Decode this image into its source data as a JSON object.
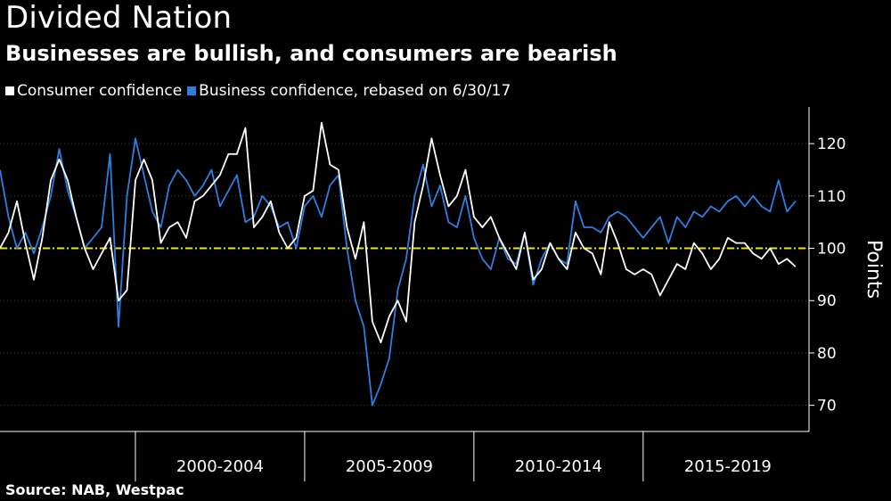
{
  "header": {
    "title": "Divided Nation",
    "subtitle": "Businesses are bullish, and consumers are bearish"
  },
  "legend": {
    "consumer_label": "Consumer confidence",
    "business_label": "Business confidence, rebased on 6/30/17"
  },
  "footer": {
    "source": "Source: NAB, Westpac"
  },
  "colors": {
    "background": "#000000",
    "consumer": "#ffffff",
    "business": "#2e7ee0",
    "reference_line": "#f2e600",
    "grid": "#444444"
  },
  "chart_data": {
    "type": "line",
    "ylabel": "Points",
    "ylim": [
      65,
      127
    ],
    "xlim": [
      1996.0,
      2019.9
    ],
    "yticks": [
      70,
      80,
      90,
      100,
      110,
      120
    ],
    "ytick_labels": [
      "70",
      "80",
      "90",
      "100",
      "110",
      "120"
    ],
    "x_period_labels": [
      {
        "label": "2000-2004",
        "center": 2002.5
      },
      {
        "label": "2005-2009",
        "center": 2007.5
      },
      {
        "label": "2010-2014",
        "center": 2012.5
      },
      {
        "label": "2015-2019",
        "center": 2017.5
      }
    ],
    "x_dividers": [
      2000.0,
      2005.0,
      2010.0,
      2015.0
    ],
    "grid": "horizontal dotted",
    "reference_line": {
      "y": 100,
      "style": "dash-dot"
    },
    "legend_position": "top-left",
    "series": [
      {
        "name": "Consumer confidence",
        "color": "#ffffff",
        "x": [
          1996.0,
          1996.25,
          1996.5,
          1996.75,
          1997.0,
          1997.25,
          1997.5,
          1997.75,
          1998.0,
          1998.25,
          1998.5,
          1998.75,
          1999.0,
          1999.25,
          1999.5,
          1999.75,
          2000.0,
          2000.25,
          2000.5,
          2000.75,
          2001.0,
          2001.25,
          2001.5,
          2001.75,
          2002.0,
          2002.25,
          2002.5,
          2002.75,
          2003.0,
          2003.25,
          2003.5,
          2003.75,
          2004.0,
          2004.25,
          2004.5,
          2004.75,
          2005.0,
          2005.25,
          2005.5,
          2005.75,
          2006.0,
          2006.25,
          2006.5,
          2006.75,
          2007.0,
          2007.25,
          2007.5,
          2007.75,
          2008.0,
          2008.25,
          2008.5,
          2008.75,
          2009.0,
          2009.25,
          2009.5,
          2009.75,
          2010.0,
          2010.25,
          2010.5,
          2010.75,
          2011.0,
          2011.25,
          2011.5,
          2011.75,
          2012.0,
          2012.25,
          2012.5,
          2012.75,
          2013.0,
          2013.25,
          2013.5,
          2013.75,
          2014.0,
          2014.25,
          2014.5,
          2014.75,
          2015.0,
          2015.25,
          2015.5,
          2015.75,
          2016.0,
          2016.25,
          2016.5,
          2016.75,
          2017.0,
          2017.25,
          2017.5,
          2017.75,
          2018.0,
          2018.25,
          2018.5,
          2018.75,
          2019.0,
          2019.25,
          2019.5
        ],
        "values": [
          100,
          103,
          109,
          101,
          94,
          102,
          113,
          117,
          113,
          106,
          100,
          96,
          99,
          102,
          90,
          92,
          113,
          117,
          113,
          101,
          104,
          105,
          102,
          109,
          110,
          112,
          114,
          118,
          118,
          123,
          104,
          106,
          109,
          103,
          100,
          102,
          110,
          111,
          124,
          116,
          115,
          104,
          98,
          105,
          86,
          82,
          87,
          90,
          86,
          105,
          112,
          121,
          114,
          108,
          110,
          115,
          106,
          104,
          106,
          102,
          99,
          96,
          103,
          94,
          96,
          101,
          98,
          96,
          103,
          100,
          99,
          95,
          105,
          101,
          96,
          95,
          96,
          95,
          91,
          94,
          97,
          96,
          101,
          99,
          96,
          98,
          102,
          101,
          101,
          99,
          98,
          100,
          97,
          98,
          96.5
        ]
      },
      {
        "name": "Business confidence, rebased on 6/30/17",
        "color": "#2e7ee0",
        "x": [
          1996.0,
          1996.25,
          1996.5,
          1996.75,
          1997.0,
          1997.25,
          1997.5,
          1997.75,
          1998.0,
          1998.25,
          1998.5,
          1998.75,
          1999.0,
          1999.25,
          1999.5,
          1999.75,
          2000.0,
          2000.25,
          2000.5,
          2000.75,
          2001.0,
          2001.25,
          2001.5,
          2001.75,
          2002.0,
          2002.25,
          2002.5,
          2002.75,
          2003.0,
          2003.25,
          2003.5,
          2003.75,
          2004.0,
          2004.25,
          2004.5,
          2004.75,
          2005.0,
          2005.25,
          2005.5,
          2005.75,
          2006.0,
          2006.25,
          2006.5,
          2006.75,
          2007.0,
          2007.25,
          2007.5,
          2007.75,
          2008.0,
          2008.25,
          2008.5,
          2008.75,
          2009.0,
          2009.25,
          2009.5,
          2009.75,
          2010.0,
          2010.25,
          2010.5,
          2010.75,
          2011.0,
          2011.25,
          2011.5,
          2011.75,
          2012.0,
          2012.25,
          2012.5,
          2012.75,
          2013.0,
          2013.25,
          2013.5,
          2013.75,
          2014.0,
          2014.25,
          2014.5,
          2014.75,
          2015.0,
          2015.25,
          2015.5,
          2015.75,
          2016.0,
          2016.25,
          2016.5,
          2016.75,
          2017.0,
          2017.25,
          2017.5,
          2017.75,
          2018.0,
          2018.25,
          2018.5,
          2018.75,
          2019.0,
          2019.25,
          2019.5
        ],
        "values": [
          115,
          106,
          100,
          103,
          99,
          104,
          110,
          119,
          111,
          106,
          100,
          102,
          104,
          118,
          85,
          110,
          121,
          114,
          107,
          104,
          112,
          115,
          113,
          110,
          112,
          115,
          108,
          111,
          114,
          105,
          106,
          110,
          108,
          104,
          105,
          100,
          108,
          110,
          106,
          112,
          114,
          100,
          90,
          85,
          70,
          74,
          79,
          92,
          98,
          110,
          116,
          108,
          112,
          105,
          104,
          110,
          102,
          98,
          96,
          102,
          98,
          97,
          103,
          93,
          98,
          101,
          98,
          97,
          109,
          104,
          104,
          103,
          106,
          107,
          106,
          104,
          102,
          104,
          106,
          101,
          106,
          104,
          107,
          106,
          108,
          107,
          109,
          110,
          108,
          110,
          108,
          107,
          113,
          107,
          109
        ]
      }
    ]
  }
}
